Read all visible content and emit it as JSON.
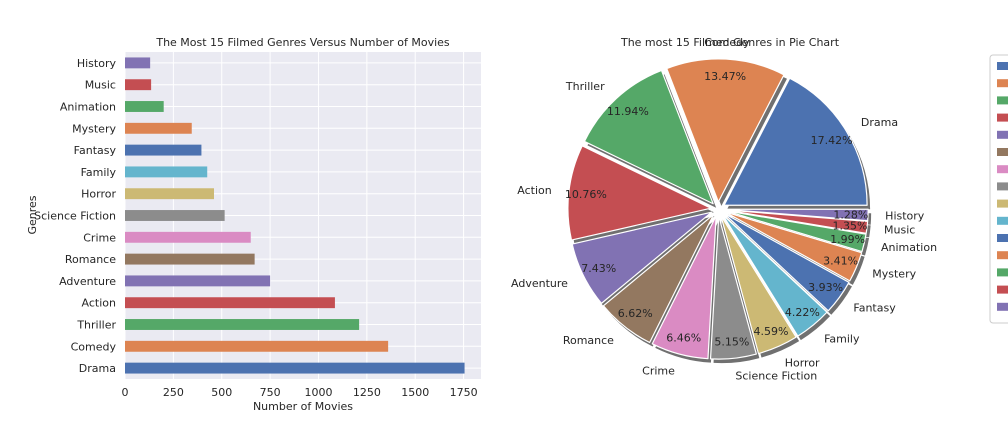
{
  "chart_data": [
    {
      "type": "bar",
      "orientation": "horizontal",
      "title": "The Most 15 Filmed Genres Versus Number of Movies",
      "xlabel": "Number of Movies",
      "ylabel": "Genres",
      "xlim": [
        0,
        1840
      ],
      "xticks": [
        0,
        250,
        500,
        750,
        1000,
        1250,
        1500,
        1750
      ],
      "grid": true,
      "categories": [
        "Drama",
        "Comedy",
        "Thriller",
        "Action",
        "Adventure",
        "Romance",
        "Crime",
        "Science Fiction",
        "Horror",
        "Family",
        "Fantasy",
        "Mystery",
        "Animation",
        "Music",
        "History"
      ],
      "values": [
        1755,
        1360,
        1210,
        1085,
        750,
        670,
        650,
        515,
        460,
        425,
        395,
        345,
        200,
        135,
        130
      ],
      "colors": [
        "#4c72b0",
        "#dd8452",
        "#55a868",
        "#c44e52",
        "#8172b3",
        "#937860",
        "#da8bc3",
        "#8c8c8c",
        "#ccb974",
        "#64b5cd",
        "#4c72b0",
        "#dd8452",
        "#55a868",
        "#c44e52",
        "#8172b3"
      ]
    },
    {
      "type": "pie",
      "title": "The most 15 Filmed Genres in Pie Chart",
      "categories": [
        "Drama",
        "Comedy",
        "Thriller",
        "Action",
        "Adventure",
        "Romance",
        "Crime",
        "Science Fiction",
        "Horror",
        "Family",
        "Fantasy",
        "Mystery",
        "Animation",
        "Music",
        "History"
      ],
      "percent_labels": [
        "17.42%",
        "13.47%",
        "11.94%",
        "10.76%",
        "7.43%",
        "6.62%",
        "6.46%",
        "5.15%",
        "4.59%",
        "4.22%",
        "3.93%",
        "3.41%",
        "1.99%",
        "1.35%",
        "1.28%"
      ],
      "values": [
        17.42,
        13.47,
        11.94,
        10.76,
        7.43,
        6.62,
        6.46,
        5.15,
        4.59,
        4.22,
        3.93,
        3.41,
        1.99,
        1.35,
        1.28
      ],
      "colors": [
        "#4c72b0",
        "#dd8452",
        "#55a868",
        "#c44e52",
        "#8172b3",
        "#937860",
        "#da8bc3",
        "#8c8c8c",
        "#ccb974",
        "#64b5cd",
        "#4c72b0",
        "#dd8452",
        "#55a868",
        "#c44e52",
        "#8172b3"
      ],
      "exploded": true,
      "shadow": true,
      "legend": "right (clipped)"
    }
  ]
}
